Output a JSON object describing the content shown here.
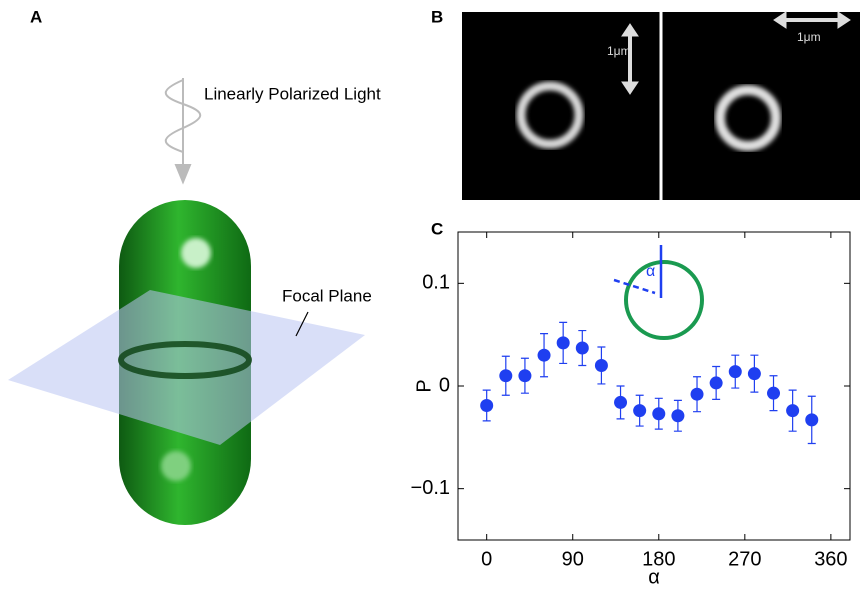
{
  "panels": {
    "a": "A",
    "b": "B",
    "c": "C"
  },
  "annotations": {
    "light": "Linearly Polarized Light",
    "focal_plane": "Focal Plane",
    "scale_left": "1μm",
    "scale_right": "1μm",
    "inset_angle": "α"
  },
  "chart_data": {
    "type": "scatter",
    "xlabel": "α",
    "ylabel": "P",
    "xlim": [
      -30,
      380
    ],
    "ylim": [
      -0.15,
      0.15
    ],
    "xticks": [
      0,
      90,
      180,
      270,
      360
    ],
    "yticks": [
      {
        "value": -0.1,
        "label": "−0.1"
      },
      0,
      0.1
    ],
    "grid": false,
    "series": [
      {
        "color": "#1f3ff0",
        "x": [
          0,
          20,
          40,
          60,
          80,
          100,
          120,
          140,
          160,
          180,
          200,
          220,
          240,
          260,
          280,
          300,
          320,
          340
        ],
        "values": [
          -0.019,
          0.01,
          0.01,
          0.03,
          0.042,
          0.037,
          0.02,
          -0.016,
          -0.024,
          -0.027,
          -0.029,
          -0.008,
          0.003,
          0.014,
          0.012,
          -0.007,
          -0.024,
          -0.033
        ],
        "errors": [
          0.015,
          0.019,
          0.017,
          0.021,
          0.02,
          0.017,
          0.018,
          0.016,
          0.015,
          0.015,
          0.015,
          0.017,
          0.016,
          0.016,
          0.018,
          0.017,
          0.02,
          0.023
        ]
      }
    ]
  }
}
